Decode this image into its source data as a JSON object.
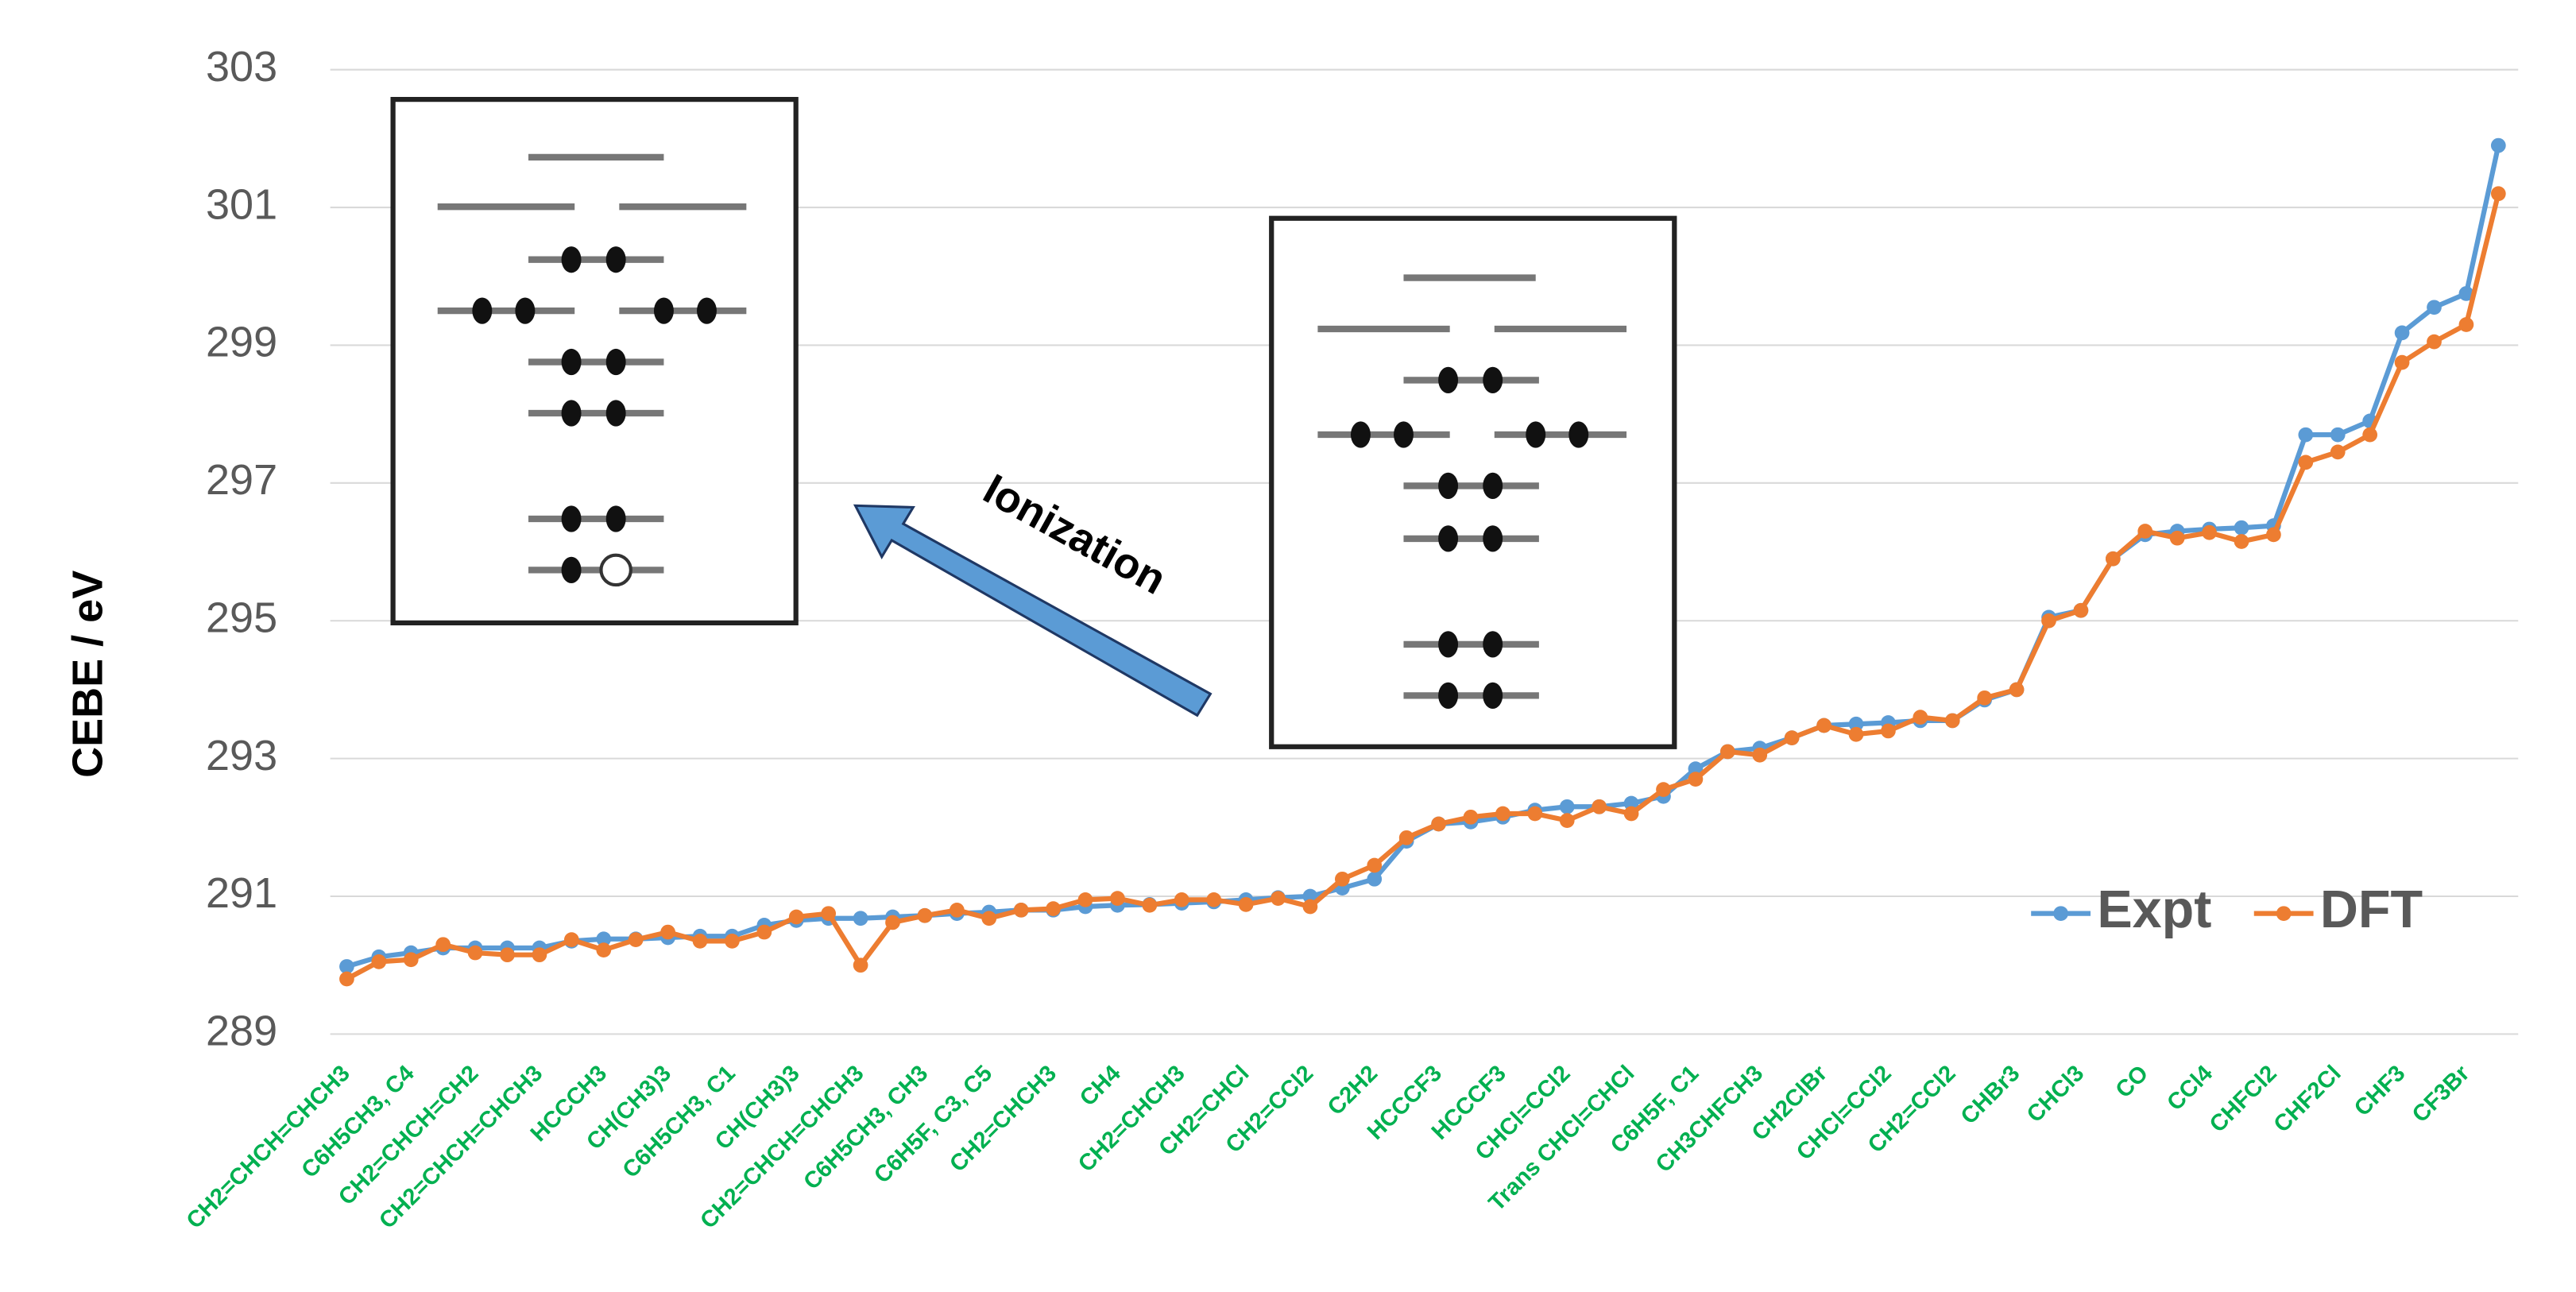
{
  "chart_data": {
    "type": "line",
    "y_label": "CEBE / eV",
    "annotations": [
      "Ionization"
    ],
    "categories": [
      "CH2=CHCH=CHCH3",
      null,
      "C6H5CH3, C4",
      null,
      "CH2=CHCH=CH2",
      null,
      "CH2=CHCH=CHCH3",
      null,
      "HCCCH3",
      null,
      "CH(CH3)3",
      null,
      "C6H5CH3, C1",
      null,
      "CH(CH3)3",
      null,
      "CH2=CHCH=CHCH3",
      null,
      "C6H5CH3, CH3",
      null,
      "C6H5F, C3, C5",
      null,
      "CH2=CHCH3",
      null,
      "CH4",
      null,
      "CH2=CHCH3",
      null,
      "CH2=CHCl",
      null,
      "CH2=CCl2",
      null,
      "C2H2",
      null,
      "HCCCF3",
      null,
      "HCCCF3",
      null,
      "CHCl=CCl2",
      null,
      "Trans CHCl=CHCl",
      null,
      "C6H5F, C1",
      null,
      "CH3CHFCH3",
      null,
      "CH2ClBr",
      null,
      "CHCl=CCl2",
      null,
      "CH2=CCl2",
      null,
      "CHBr3",
      null,
      "CHCl3",
      null,
      "CO",
      null,
      "CCl4",
      null,
      "CHFCl2",
      null,
      "CHF2Cl",
      null,
      "CHF3",
      null,
      "CF3Br",
      null
    ],
    "series": [
      {
        "name": "Expt",
        "color": "#5b9bd5",
        "values": [
          289.98,
          290.12,
          290.18,
          290.25,
          290.25,
          290.25,
          290.25,
          290.35,
          290.38,
          290.38,
          290.4,
          290.42,
          290.42,
          290.58,
          290.65,
          290.68,
          290.68,
          290.7,
          290.72,
          290.75,
          290.77,
          290.8,
          290.8,
          290.85,
          290.87,
          290.88,
          290.9,
          290.92,
          290.95,
          290.98,
          291.0,
          291.12,
          291.25,
          291.8,
          292.05,
          292.08,
          292.15,
          292.25,
          292.3,
          292.3,
          292.35,
          292.45,
          292.85,
          293.1,
          293.15,
          293.3,
          293.48,
          293.5,
          293.52,
          293.55,
          293.55,
          293.85,
          294.0,
          295.05,
          295.15,
          295.9,
          296.25,
          296.3,
          296.33,
          296.35,
          296.38,
          297.7,
          297.7,
          297.9,
          299.18,
          299.55,
          299.75,
          301.9
        ]
      },
      {
        "name": "DFT",
        "color": "#ed7d31",
        "values": [
          289.8,
          290.05,
          290.08,
          290.3,
          290.18,
          290.15,
          290.15,
          290.37,
          290.22,
          290.37,
          290.48,
          290.35,
          290.35,
          290.48,
          290.7,
          290.75,
          290.0,
          290.62,
          290.72,
          290.8,
          290.68,
          290.8,
          290.82,
          290.95,
          290.97,
          290.87,
          290.95,
          290.95,
          290.88,
          290.97,
          290.85,
          291.25,
          291.45,
          291.85,
          292.05,
          292.15,
          292.2,
          292.2,
          292.1,
          292.3,
          292.2,
          292.55,
          292.7,
          293.1,
          293.05,
          293.3,
          293.48,
          293.35,
          293.4,
          293.6,
          293.55,
          293.88,
          294.0,
          295.0,
          295.15,
          295.9,
          296.3,
          296.2,
          296.28,
          296.15,
          296.25,
          297.3,
          297.45,
          297.7,
          298.75,
          299.05,
          299.3,
          301.2
        ]
      }
    ],
    "ylim": [
      289,
      303
    ],
    "yticks": [
      289,
      291,
      293,
      295,
      297,
      299,
      301,
      303
    ],
    "grid": true
  }
}
